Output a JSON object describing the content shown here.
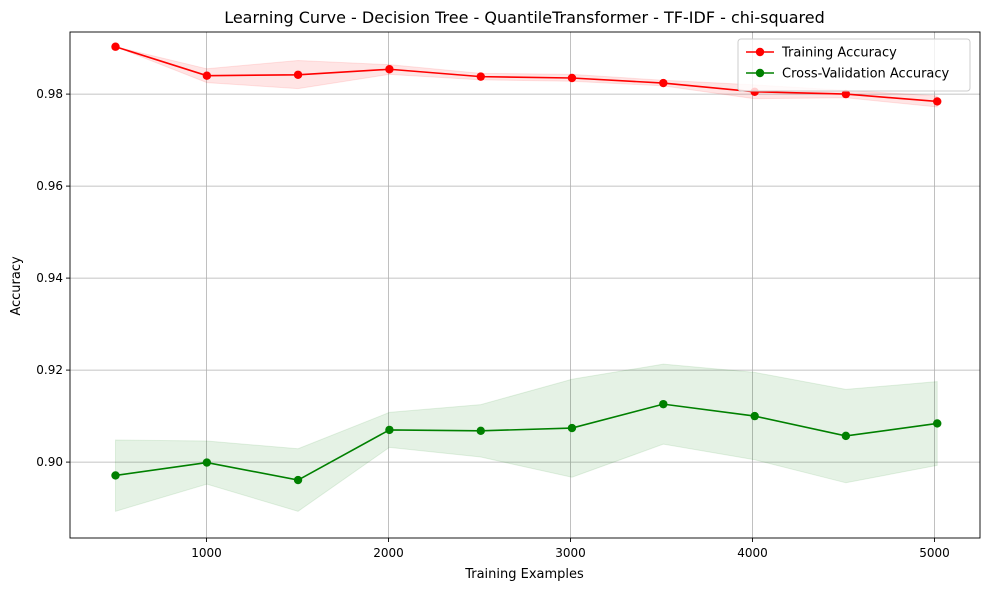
{
  "chart_data": {
    "type": "line",
    "title": "Learning Curve - Decision Tree - QuantileTransformer - TF-IDF - chi-squared",
    "xlabel": "Training Examples",
    "ylabel": "Accuracy",
    "xlim": [
      250,
      5250
    ],
    "ylim": [
      0.8835,
      0.9935
    ],
    "xticks": [
      1000,
      2000,
      3000,
      4000,
      5000
    ],
    "yticks": [
      0.9,
      0.92,
      0.94,
      0.96,
      0.98
    ],
    "grid": true,
    "legend_position": "upper right",
    "x": [
      500,
      1002,
      1503,
      2005,
      2507,
      3008,
      3510,
      4012,
      4513,
      5015
    ],
    "series": [
      {
        "name": "Training Accuracy",
        "color": "#ff0000",
        "values": [
          0.9903,
          0.984,
          0.9842,
          0.9854,
          0.9838,
          0.9835,
          0.9824,
          0.9805,
          0.98,
          0.9784
        ],
        "band_upper": [
          0.9903,
          0.9855,
          0.9873,
          0.9864,
          0.9845,
          0.9843,
          0.983,
          0.982,
          0.9808,
          0.9796
        ],
        "band_lower": [
          0.9903,
          0.9825,
          0.9812,
          0.9843,
          0.9831,
          0.9828,
          0.9818,
          0.979,
          0.9792,
          0.9772
        ]
      },
      {
        "name": "Cross-Validation Accuracy",
        "color": "#008000",
        "values": [
          0.8971,
          0.8999,
          0.8961,
          0.907,
          0.9068,
          0.9074,
          0.9126,
          0.91,
          0.9057,
          0.9084
        ],
        "band_upper": [
          0.9048,
          0.9046,
          0.9029,
          0.9108,
          0.9125,
          0.918,
          0.9213,
          0.9195,
          0.9158,
          0.9175
        ],
        "band_lower": [
          0.8893,
          0.8952,
          0.8893,
          0.9032,
          0.9011,
          0.8967,
          0.9039,
          0.9005,
          0.8955,
          0.8993
        ]
      }
    ]
  }
}
